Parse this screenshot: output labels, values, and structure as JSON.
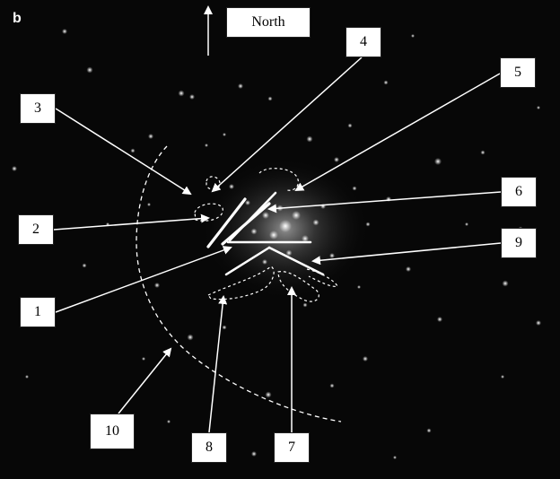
{
  "figure": {
    "panel_label": "b",
    "north_label": "North",
    "callouts": [
      {
        "id": "1",
        "text": "1"
      },
      {
        "id": "2",
        "text": "2"
      },
      {
        "id": "3",
        "text": "3"
      },
      {
        "id": "4",
        "text": "4"
      },
      {
        "id": "5",
        "text": "5"
      },
      {
        "id": "6",
        "text": "6"
      },
      {
        "id": "7",
        "text": "7"
      },
      {
        "id": "8",
        "text": "8"
      },
      {
        "id": "9",
        "text": "9"
      },
      {
        "id": "10",
        "text": "10"
      }
    ]
  },
  "colors": {
    "background": "#070707",
    "label_box": "#ffffff",
    "lines": "#ffffff",
    "stars": "#ffffff"
  }
}
